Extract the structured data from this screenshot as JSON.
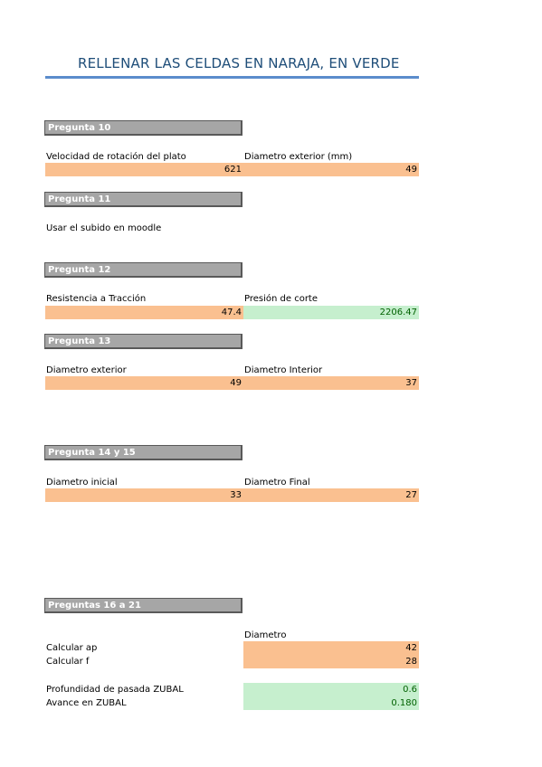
{
  "title": "RELLENAR LAS CELDAS EN NARAJA, EN VERDE",
  "colors": {
    "orange_cell": "#fac090",
    "green_cell": "#c6efce",
    "header": "#a6a6a6",
    "title": "#1f4e79"
  },
  "q10": {
    "header": "Pregunta 10",
    "label_a": "Velocidad de rotación del plato",
    "label_b": "Diametro exterior (mm)",
    "value_a": "621",
    "value_b": "49"
  },
  "q11": {
    "header": "Pregunta 11",
    "note": "Usar el subido en moodle"
  },
  "q12": {
    "header": "Pregunta 12",
    "label_a": "Resistencia a Tracción",
    "label_b": "Presión de corte",
    "value_a": "47.4",
    "value_b": "2206.47"
  },
  "q13": {
    "header": "Pregunta 13",
    "label_a": "Diametro exterior",
    "label_b": "Diametro Interior",
    "value_a": "49",
    "value_b": "37"
  },
  "q14": {
    "header": "Pregunta 14 y 15",
    "label_a": "Diametro inicial",
    "label_b": "Diametro Final",
    "value_a": "33",
    "value_b": "27"
  },
  "q16": {
    "header": "Preguntas 16 a 21",
    "col_label": "Diametro",
    "calc_ap_label": "Calcular ap",
    "calc_ap_value": "42",
    "calc_f_label": "Calcular f",
    "calc_f_value": "28",
    "depth_label": "Profundidad de pasada ZUBAL",
    "depth_value": "0.6",
    "feed_label": "Avance en ZUBAL",
    "feed_value": "0.180"
  }
}
